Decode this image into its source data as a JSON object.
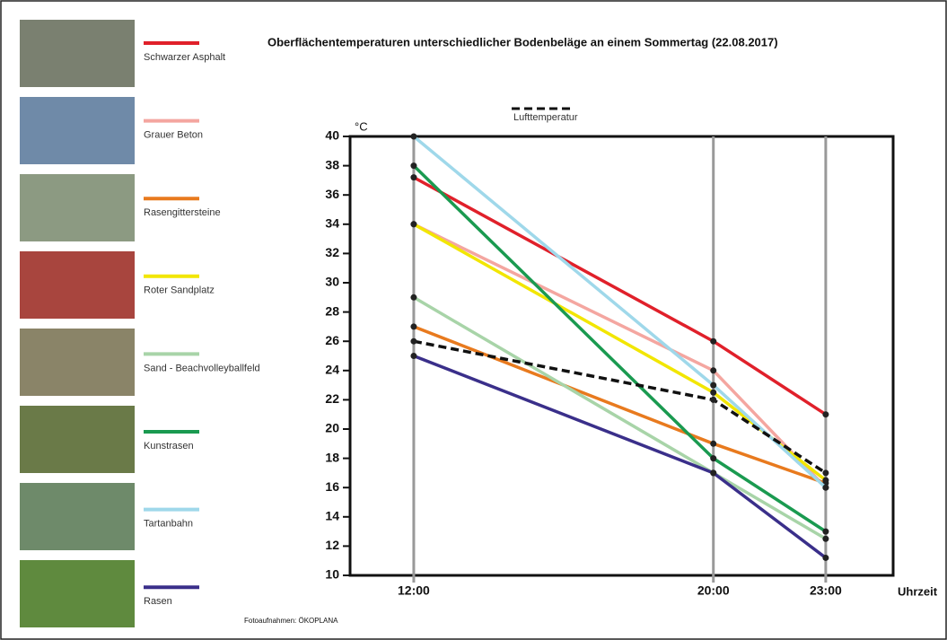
{
  "chart_data": {
    "type": "line",
    "title": "Oberflächentemperaturen unterschiedlicher Bodenbeläge an einem Sommertag (22.08.2017)",
    "y_label": "°C",
    "x_label": "Uhrzeit",
    "credit": "Fotoaufnahmen: ÖKOPLANA",
    "x": [
      12,
      20,
      23
    ],
    "xlim": [
      10.3,
      24.8
    ],
    "xticks": [
      {
        "value": 12,
        "label": "12:00"
      },
      {
        "value": 20,
        "label": "20:00"
      },
      {
        "value": 23,
        "label": "23:00"
      }
    ],
    "ylim": [
      10,
      40
    ],
    "yticks": [
      10,
      12,
      14,
      16,
      18,
      20,
      22,
      24,
      26,
      28,
      30,
      32,
      34,
      36,
      38,
      40
    ],
    "series": [
      {
        "name": "Schwarzer Asphalt",
        "color": "#e0202a",
        "values": [
          37.2,
          26,
          21
        ]
      },
      {
        "name": "Grauer Beton",
        "color": "#f4a6a0",
        "values": [
          34,
          24,
          16
        ]
      },
      {
        "name": "Rasengittersteine",
        "color": "#e87a1e",
        "values": [
          27,
          19,
          16.3
        ]
      },
      {
        "name": "Roter Sandplatz",
        "color": "#f2e600",
        "values": [
          34,
          22.5,
          16.5
        ]
      },
      {
        "name": "Sand - Beachvolleyballfeld",
        "color": "#a8d4a8",
        "values": [
          29,
          17,
          12.5
        ]
      },
      {
        "name": "Kunstrasen",
        "color": "#1a9a50",
        "values": [
          38,
          18,
          13
        ]
      },
      {
        "name": "Tartanbahn",
        "color": "#9fd8ea",
        "values": [
          40,
          23,
          16
        ]
      },
      {
        "name": "Rasen",
        "color": "#3a2f8a",
        "values": [
          25,
          17,
          11.2
        ]
      },
      {
        "name": "Lufttemperatur",
        "color": "#111111",
        "dashed": true,
        "values": [
          26,
          22,
          17
        ]
      }
    ]
  }
}
